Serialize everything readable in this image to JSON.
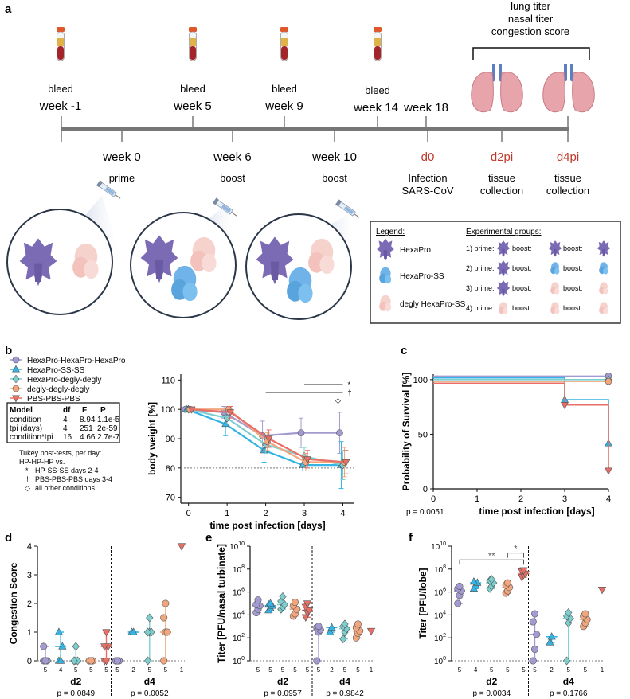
{
  "panel_labels": [
    "a",
    "b",
    "c",
    "d",
    "e",
    "f"
  ],
  "panel_a": {
    "outcomes": [
      "lung titer",
      "nasal titer",
      "congestion score"
    ],
    "bleeds": [
      {
        "label": "bleed",
        "week": "week -1"
      },
      {
        "label": "bleed",
        "week": "week 5"
      },
      {
        "label": "bleed",
        "week": "week 9"
      },
      {
        "label": "bleed",
        "week": "week 14"
      }
    ],
    "week18": "week 18",
    "events": [
      {
        "week": "week 0",
        "what": "prime"
      },
      {
        "week": "week 6",
        "what": "boost"
      },
      {
        "week": "week 10",
        "what": "boost"
      }
    ],
    "infection": {
      "day": "d0",
      "line1": "Infection",
      "line2": "SARS-CoV"
    },
    "collections": [
      {
        "day": "d2pi",
        "line1": "tissue",
        "line2": "collection"
      },
      {
        "day": "d4pi",
        "line1": "tissue",
        "line2": "collection"
      }
    ],
    "legend_title": "Legend:",
    "legend_items": [
      "HexaPro",
      "HexaPro-SS",
      "degly HexaPro-SS"
    ],
    "groups_title": "Experimental groups:",
    "groups": [
      {
        "num": "1) prime:",
        "b1": "boost:",
        "b2": "boost:"
      },
      {
        "num": "2) prime:",
        "b1": "boost:",
        "b2": "boost:"
      },
      {
        "num": "3) prime:",
        "b1": "boost:",
        "b2": "boost:"
      },
      {
        "num": "4) prime:",
        "b1": "boost:",
        "b2": "boost:"
      }
    ],
    "colors": {
      "hexapro": "#7b6bb5",
      "ss": "#6fb3e8",
      "degly": "#f3c6c0",
      "lung": "#e79aa3",
      "timeline": "#777777",
      "red": "#c0392b"
    }
  },
  "panel_b_legend": {
    "series": [
      "HexaPro-HexaPro-HexaPro",
      "HexaPro-SS-SS",
      "HexaPro-degly-degly",
      "degly-degly-degly",
      "PBS-PBS-PBS"
    ],
    "table_header": [
      "Model",
      "df",
      "F",
      "P"
    ],
    "table_rows": [
      [
        "condition",
        "4",
        "8.94",
        "1.1e-5"
      ],
      [
        "tpi (days)",
        "4",
        "251",
        "2e-59"
      ],
      [
        "condition*tpi",
        "16",
        "4.66",
        "2.7e-7"
      ]
    ],
    "notes": [
      "Tukey post-tests, per day:",
      "HP-HP-HP vs."
    ],
    "note_items": [
      {
        "sym": "*",
        "text": "HP-SS-SS days 2-4"
      },
      {
        "sym": "†",
        "text": "PBS-PBS-PBS days 3-4"
      },
      {
        "sym": "◇",
        "text": "all other conditions"
      }
    ]
  },
  "chart_data": [
    {
      "id": "b",
      "type": "line",
      "title": "",
      "xlabel": "time post infection [days]",
      "ylabel": "body weight [%]",
      "x": [
        0,
        1,
        2,
        3,
        4
      ],
      "xlim": [
        -0.2,
        4.3
      ],
      "ylim": [
        68,
        112
      ],
      "yticks": [
        70,
        80,
        90,
        100,
        110
      ],
      "xticks": [
        0,
        1,
        2,
        3,
        4
      ],
      "reference_line": 80,
      "series": [
        {
          "name": "HexaPro-HexaPro-HexaPro",
          "color": "#a29bd1",
          "marker": "circle",
          "values": [
            100,
            99,
            91,
            92,
            92
          ],
          "err": [
            0.5,
            2,
            5,
            5,
            7
          ]
        },
        {
          "name": "HexaPro-SS-SS",
          "color": "#33b4e4",
          "marker": "triangle",
          "values": [
            100,
            95,
            86,
            81,
            81
          ],
          "err": [
            0.5,
            4,
            4,
            2,
            8
          ]
        },
        {
          "name": "HexaPro-degly-degly",
          "color": "#7dcfcf",
          "marker": "diamond",
          "values": [
            100,
            97,
            88,
            84,
            81
          ],
          "err": [
            0.5,
            2,
            3,
            3,
            5
          ]
        },
        {
          "name": "degly-degly-degly",
          "color": "#f2a67d",
          "marker": "circle",
          "values": [
            100,
            100,
            89,
            82,
            82
          ],
          "err": [
            0.5,
            1,
            3,
            3,
            5
          ]
        },
        {
          "name": "PBS-PBS-PBS",
          "color": "#e86f66",
          "marker": "invtriangle",
          "values": [
            100,
            99,
            90,
            83,
            82
          ],
          "err": [
            0.5,
            2,
            3,
            3,
            4
          ]
        }
      ],
      "annotations": [
        "*",
        "†",
        "◇"
      ]
    },
    {
      "id": "c",
      "type": "line",
      "xlabel": "time post infection [days]",
      "ylabel": "Probability of Survival [%]",
      "x": [
        0,
        3,
        4
      ],
      "xlim": [
        0,
        4
      ],
      "ylim": [
        0,
        105
      ],
      "yticks": [
        0,
        50,
        100
      ],
      "xticks": [
        0,
        1,
        2,
        3,
        4
      ],
      "p_value": "p = 0.0051",
      "series": [
        {
          "name": "HexaPro-HexaPro-HexaPro",
          "color": "#a29bd1",
          "values": [
            100,
            100,
            100
          ]
        },
        {
          "name": "HexaPro-SS-SS",
          "color": "#33b4e4",
          "values": [
            100,
            80,
            40
          ]
        },
        {
          "name": "HexaPro-degly-degly",
          "color": "#7dcfcf",
          "values": [
            100,
            100,
            100
          ]
        },
        {
          "name": "degly-degly-degly",
          "color": "#f2a67d",
          "values": [
            100,
            100,
            100
          ]
        },
        {
          "name": "PBS-PBS-PBS",
          "color": "#e86f66",
          "values": [
            100,
            80,
            20
          ]
        }
      ]
    },
    {
      "id": "d",
      "type": "scatter",
      "ylabel": "Congestion Score",
      "ylim": [
        0,
        4
      ],
      "yticks": [
        0,
        1,
        2,
        3,
        4
      ],
      "groups": [
        "d2",
        "d4"
      ],
      "p_values": [
        "p = 0.0849",
        "p = 0.0052"
      ],
      "n": [
        [
          "5",
          "4",
          "5",
          "5",
          "5"
        ],
        [
          "5",
          "2",
          "5",
          "5",
          "1"
        ]
      ],
      "series": [
        {
          "name": "HexaPro-HexaPro-HexaPro",
          "color": "#a29bd1",
          "marker": "circle",
          "d2": [
            0,
            0,
            0,
            0.5,
            0
          ],
          "d4": [
            0,
            0,
            0,
            0,
            0
          ]
        },
        {
          "name": "HexaPro-SS-SS",
          "color": "#33b4e4",
          "marker": "triangle",
          "d2": [
            0,
            0,
            0.5,
            1
          ],
          "d4": [
            1,
            1
          ]
        },
        {
          "name": "HexaPro-degly-degly",
          "color": "#7dcfcf",
          "marker": "diamond",
          "d2": [
            0,
            0,
            0,
            0,
            0.5
          ],
          "d4": [
            0,
            1,
            1,
            1,
            1.5
          ]
        },
        {
          "name": "degly-degly-degly",
          "color": "#f2a67d",
          "marker": "circle",
          "d2": [
            0,
            0,
            0,
            0,
            0
          ],
          "d4": [
            0,
            1,
            1,
            1.5,
            2
          ]
        },
        {
          "name": "PBS-PBS-PBS",
          "color": "#e86f66",
          "marker": "invtriangle",
          "d2": [
            0,
            0,
            0.5,
            0.5,
            1
          ],
          "d4": [
            4
          ]
        }
      ]
    },
    {
      "id": "e",
      "type": "scatter",
      "ylabel": "Titer [PFU/nasal turbinate]",
      "yscale": "log",
      "ylim_exp": [
        0,
        10
      ],
      "yticks_exp": [
        0,
        2,
        4,
        6,
        8,
        10
      ],
      "groups": [
        "d2",
        "d4"
      ],
      "p_values": [
        "p = 0.0957",
        "p = 0.9842"
      ],
      "n": [
        [
          "5",
          "5",
          "5",
          "5",
          "5"
        ],
        [
          "5",
          "2",
          "5",
          "5",
          "1"
        ]
      ],
      "series": [
        {
          "name": "HexaPro-HexaPro-HexaPro",
          "color": "#a29bd1",
          "marker": "circle",
          "d2_exp": [
            4.2,
            4.5,
            4.8,
            4.9,
            5.3
          ],
          "d4_exp": [
            0,
            2.5,
            2.7,
            2.9,
            3.0
          ]
        },
        {
          "name": "HexaPro-SS-SS",
          "color": "#33b4e4",
          "marker": "triangle",
          "d2_exp": [
            4.4,
            4.6,
            4.8,
            4.9,
            5.0
          ],
          "d4_exp": [
            2.5,
            2.9
          ]
        },
        {
          "name": "HexaPro-degly-degly",
          "color": "#7dcfcf",
          "marker": "diamond",
          "d2_exp": [
            4.5,
            4.7,
            4.9,
            5.2,
            5.6
          ],
          "d4_exp": [
            1.9,
            2.5,
            2.8,
            3.0,
            3.2
          ]
        },
        {
          "name": "degly-degly-degly",
          "color": "#f2a67d",
          "marker": "circle",
          "d2_exp": [
            3.9,
            4.1,
            4.5,
            4.8,
            5.1
          ],
          "d4_exp": [
            2.0,
            2.4,
            2.6,
            2.9,
            3.2
          ]
        },
        {
          "name": "PBS-PBS-PBS",
          "color": "#e86f66",
          "marker": "invtriangle",
          "d2_exp": [
            3.8,
            4.2,
            4.4,
            4.7,
            5.0
          ],
          "d4_exp": [
            2.6
          ]
        }
      ]
    },
    {
      "id": "f",
      "type": "scatter",
      "ylabel": "Titer [PFU/lobe]",
      "yscale": "log",
      "ylim_exp": [
        0,
        10
      ],
      "yticks_exp": [
        0,
        2,
        4,
        6,
        8,
        10
      ],
      "groups": [
        "d2",
        "d4"
      ],
      "p_values": [
        "p = 0.0034",
        "p = 0.1766"
      ],
      "n": [
        [
          "5",
          "4",
          "5",
          "5",
          "5"
        ],
        [
          "5",
          "2",
          "5",
          "5",
          "1"
        ]
      ],
      "significance": [
        "**",
        "*"
      ],
      "series": [
        {
          "name": "HexaPro-HexaPro-HexaPro",
          "color": "#a29bd1",
          "marker": "circle",
          "d2_exp": [
            5.0,
            5.7,
            6.1,
            6.3,
            6.5
          ],
          "d4_exp": [
            0,
            1.0,
            2.3,
            3.4,
            4.1
          ]
        },
        {
          "name": "HexaPro-SS-SS",
          "color": "#33b4e4",
          "marker": "triangle",
          "d2_exp": [
            6.3,
            6.6,
            6.8,
            6.9
          ],
          "d4_exp": [
            1.6,
            2.1
          ]
        },
        {
          "name": "HexaPro-degly-degly",
          "color": "#7dcfcf",
          "marker": "diamond",
          "d2_exp": [
            6.3,
            6.5,
            6.8,
            7.0,
            7.1
          ],
          "d4_exp": [
            0,
            3.3,
            3.7,
            3.9,
            4.2
          ]
        },
        {
          "name": "degly-degly-degly",
          "color": "#f2a67d",
          "marker": "circle",
          "d2_exp": [
            5.9,
            6.1,
            6.4,
            6.6,
            6.8
          ],
          "d4_exp": [
            3.0,
            3.3,
            3.6,
            3.9,
            4.1
          ]
        },
        {
          "name": "PBS-PBS-PBS",
          "color": "#e86f66",
          "marker": "invtriangle",
          "d2_exp": [
            7.3,
            7.5,
            7.6,
            7.8,
            7.9
          ],
          "d4_exp": [
            6.2
          ]
        }
      ]
    }
  ]
}
